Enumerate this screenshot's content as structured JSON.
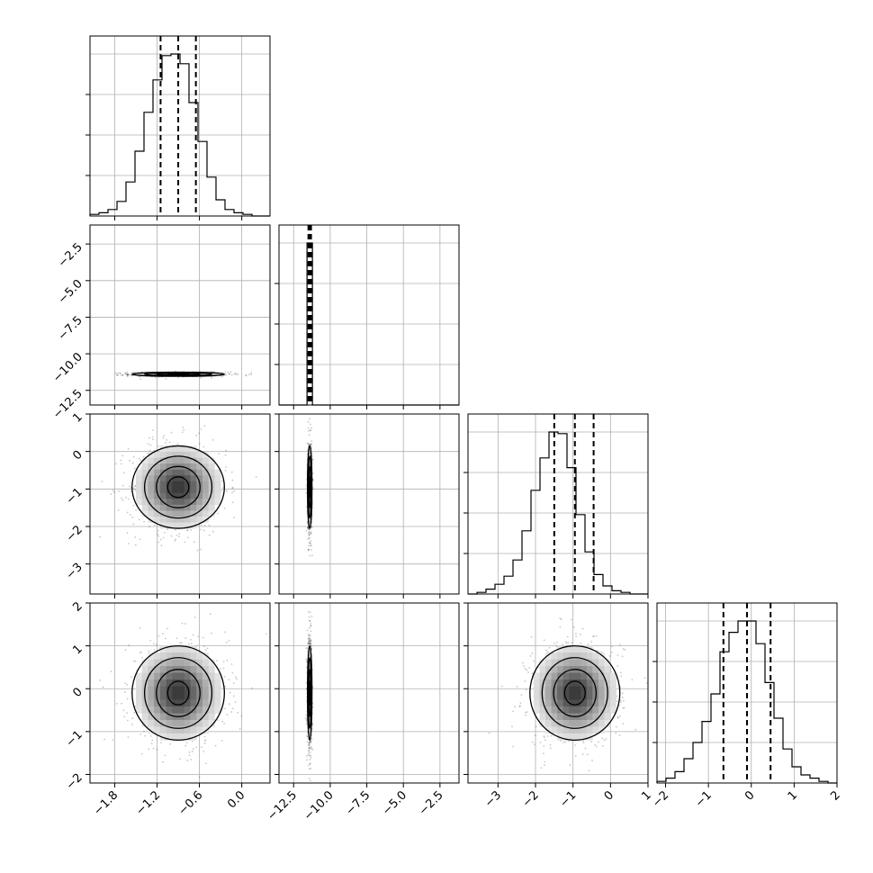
{
  "figure": {
    "description": ""
  },
  "chart_data": {
    "type": "corner",
    "parameters": 4,
    "grid": true,
    "colors": {
      "line": "#000000",
      "grid": "#b0b0b0",
      "hist2d_dark": "#202020"
    },
    "params": [
      {
        "range": [
          -2.15,
          0.4
        ],
        "ticks": [
          -1.8,
          -1.2,
          -0.6,
          0.0
        ],
        "tick_labels": [
          "−1.8",
          "−1.2",
          "−0.6",
          "0.0"
        ],
        "mean": -0.9,
        "sigma": 0.3,
        "quantiles": [
          -1.15,
          -0.9,
          -0.65
        ]
      },
      {
        "range": [
          -13.5,
          -1.2
        ],
        "ticks": [
          -12.5,
          -10.0,
          -7.5,
          -5.0,
          -2.5
        ],
        "tick_labels": [
          "−12.5",
          "−10.0",
          "−7.5",
          "−5.0",
          "−2.5"
        ],
        "mean": -11.4,
        "sigma": 0.07,
        "quantiles": [
          -11.49,
          -11.4,
          -11.31
        ]
      },
      {
        "range": [
          -3.8,
          1.0
        ],
        "ticks": [
          -3,
          -2,
          -1,
          0,
          1
        ],
        "tick_labels": [
          "−3",
          "−2",
          "−1",
          "0",
          "1"
        ],
        "mean": -0.95,
        "sigma": 0.55,
        "quantiles": [
          -1.5,
          -0.95,
          -0.45
        ]
      },
      {
        "range": [
          -2.2,
          2.0
        ],
        "ticks": [
          -2,
          -1,
          0,
          1,
          2
        ],
        "tick_labels": [
          "−2",
          "−1",
          "0",
          "1",
          "2"
        ],
        "mean": -0.1,
        "sigma": 0.55,
        "quantiles": [
          -0.65,
          -0.1,
          0.45
        ]
      }
    ],
    "histograms": [
      {
        "param": 0,
        "bins": 20,
        "counts": [
          0.01,
          0.02,
          0.04,
          0.09,
          0.21,
          0.4,
          0.64,
          0.84,
          0.99,
          1.0,
          0.94,
          0.7,
          0.46,
          0.24,
          0.1,
          0.04,
          0.02,
          0.01,
          0.0,
          0.0
        ]
      },
      {
        "param": 1,
        "bins": 20,
        "counts": [
          0,
          0,
          0,
          0,
          0,
          0,
          1.0,
          0,
          0,
          0,
          0,
          0,
          0,
          0,
          0,
          0,
          0,
          0,
          0,
          0
        ]
      },
      {
        "param": 2,
        "bins": 20,
        "counts": [
          0.0,
          0.01,
          0.03,
          0.06,
          0.11,
          0.21,
          0.39,
          0.64,
          0.84,
          1.0,
          0.99,
          0.78,
          0.49,
          0.26,
          0.12,
          0.05,
          0.02,
          0.01,
          0.0,
          0.0
        ]
      },
      {
        "param": 3,
        "bins": 20,
        "counts": [
          0.01,
          0.03,
          0.07,
          0.15,
          0.25,
          0.38,
          0.55,
          0.81,
          0.93,
          1.0,
          1.0,
          0.86,
          0.62,
          0.4,
          0.21,
          0.1,
          0.05,
          0.03,
          0.01,
          0.0
        ]
      }
    ],
    "pairs": [
      {
        "x_param": 0,
        "y_param": 1,
        "x_mean": -0.9,
        "x_sigma": 0.3,
        "y_mean": -11.4,
        "y_sigma": 0.07
      },
      {
        "x_param": 0,
        "y_param": 2,
        "x_mean": -0.9,
        "x_sigma": 0.3,
        "y_mean": -0.95,
        "y_sigma": 0.55
      },
      {
        "x_param": 1,
        "y_param": 2,
        "x_mean": -11.4,
        "x_sigma": 0.07,
        "y_mean": -0.95,
        "y_sigma": 0.55
      },
      {
        "x_param": 0,
        "y_param": 3,
        "x_mean": -0.9,
        "x_sigma": 0.3,
        "y_mean": -0.1,
        "y_sigma": 0.55
      },
      {
        "x_param": 1,
        "y_param": 3,
        "x_mean": -11.4,
        "x_sigma": 0.07,
        "y_mean": -0.1,
        "y_sigma": 0.55
      },
      {
        "x_param": 2,
        "y_param": 3,
        "x_mean": -0.95,
        "x_sigma": 0.55,
        "y_mean": -0.1,
        "y_sigma": 0.55
      }
    ],
    "contour_levels_sigma": [
      0.5,
      1.0,
      1.5,
      2.0
    ]
  }
}
